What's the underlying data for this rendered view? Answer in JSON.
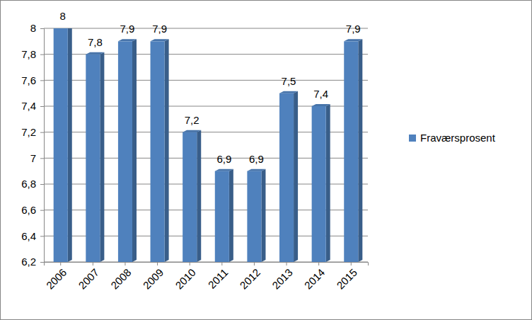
{
  "chart_data": {
    "type": "bar",
    "categories": [
      "2006",
      "2007",
      "2008",
      "2009",
      "2010",
      "2011",
      "2012",
      "2013",
      "2014",
      "2015"
    ],
    "series": [
      {
        "name": "Fraværsprosent",
        "color": "#4f81bd",
        "values": [
          8,
          7.8,
          7.9,
          7.9,
          7.2,
          6.9,
          6.9,
          7.5,
          7.4,
          7.9
        ],
        "value_labels": [
          "8",
          "7,8",
          "7,9",
          "7,9",
          "7,2",
          "6,9",
          "6,9",
          "7,5",
          "7,4",
          "7,9"
        ]
      }
    ],
    "ylim": [
      6.2,
      8
    ],
    "yticks": [
      {
        "value": 6.2,
        "label": "6,2"
      },
      {
        "value": 6.4,
        "label": "6,4"
      },
      {
        "value": 6.6,
        "label": "6,6"
      },
      {
        "value": 6.8,
        "label": "6,8"
      },
      7,
      {
        "value": 7.2,
        "label": "7,2"
      },
      {
        "value": 7.4,
        "label": "7,4"
      },
      {
        "value": 7.6,
        "label": "7,6"
      },
      {
        "value": 7.8,
        "label": "7,8"
      },
      8
    ],
    "grid": true,
    "data_labels": true,
    "legend": "right"
  }
}
